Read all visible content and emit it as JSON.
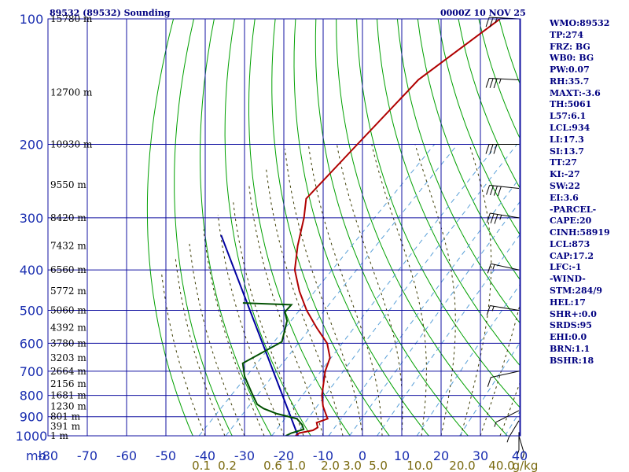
{
  "title_left": "89532 (89532) Sounding",
  "title_right": "0000Z 10 NOV 25",
  "chart_data": {
    "type": "skew-t",
    "pressure_unit_label": "mb",
    "pressure_ticks": [
      100,
      200,
      300,
      400,
      500,
      600,
      700,
      800,
      900,
      1000
    ],
    "temperature_ticks": [
      -80,
      -70,
      -60,
      -50,
      -40,
      -30,
      -20,
      -10,
      0,
      10,
      20,
      30,
      40
    ],
    "height_labels": [
      {
        "p": 100,
        "label": "15780 m"
      },
      {
        "p": 150,
        "label": "12700 m"
      },
      {
        "p": 200,
        "label": "10930 m"
      },
      {
        "p": 250,
        "label": "9550 m"
      },
      {
        "p": 300,
        "label": "8420 m"
      },
      {
        "p": 350,
        "label": "7432 m"
      },
      {
        "p": 400,
        "label": "6560 m"
      },
      {
        "p": 450,
        "label": "5772 m"
      },
      {
        "p": 500,
        "label": "5060 m"
      },
      {
        "p": 550,
        "label": "4392 m"
      },
      {
        "p": 600,
        "label": "3780 m"
      },
      {
        "p": 650,
        "label": "3203 m"
      },
      {
        "p": 700,
        "label": "2664 m"
      },
      {
        "p": 750,
        "label": "2156 m"
      },
      {
        "p": 800,
        "label": "1681 m"
      },
      {
        "p": 850,
        "label": "1230 m"
      },
      {
        "p": 900,
        "label": "801 m"
      },
      {
        "p": 950,
        "label": "391 m"
      },
      {
        "p": 1000,
        "label": "1 m"
      }
    ],
    "mixing_ratio_labels": [
      "0.1",
      "0.2",
      "0.6",
      "1.0",
      "2.0",
      "3.0",
      "5.0",
      "10.0",
      "20.0",
      "40.0",
      "g/kg"
    ],
    "temperature_profile": [
      {
        "p": 1000,
        "t": -17.0
      },
      {
        "p": 985,
        "t": -16.8
      },
      {
        "p": 970,
        "t": -14.0
      },
      {
        "p": 955,
        "t": -13.5
      },
      {
        "p": 930,
        "t": -15.0
      },
      {
        "p": 910,
        "t": -13.2
      },
      {
        "p": 890,
        "t": -14.6
      },
      {
        "p": 850,
        "t": -17.5
      },
      {
        "p": 800,
        "t": -20.6
      },
      {
        "p": 700,
        "t": -25.9
      },
      {
        "p": 650,
        "t": -28.1
      },
      {
        "p": 600,
        "t": -32.5
      },
      {
        "p": 550,
        "t": -39.2
      },
      {
        "p": 500,
        "t": -46.1
      },
      {
        "p": 450,
        "t": -52.8
      },
      {
        "p": 400,
        "t": -59.4
      },
      {
        "p": 350,
        "t": -64.8
      },
      {
        "p": 300,
        "t": -70.3
      },
      {
        "p": 270,
        "t": -74.6
      },
      {
        "p": 200,
        "t": -75.4
      },
      {
        "p": 150,
        "t": -76.1
      },
      {
        "p": 140,
        "t": -76.3
      },
      {
        "p": 100,
        "t": -71.0
      }
    ],
    "dewpoint_profile": [
      {
        "p": 1000,
        "t": -19.5
      },
      {
        "p": 985,
        "t": -18.8
      },
      {
        "p": 965,
        "t": -16.6
      },
      {
        "p": 940,
        "t": -18.2
      },
      {
        "p": 910,
        "t": -21.0
      },
      {
        "p": 885,
        "t": -27.4
      },
      {
        "p": 860,
        "t": -32.1
      },
      {
        "p": 840,
        "t": -34.8
      },
      {
        "p": 790,
        "t": -39.0
      },
      {
        "p": 720,
        "t": -45.1
      },
      {
        "p": 670,
        "t": -48.9
      },
      {
        "p": 595,
        "t": -44.4
      },
      {
        "p": 530,
        "t": -48.4
      },
      {
        "p": 505,
        "t": -51.2
      },
      {
        "p": 485,
        "t": -51.4
      },
      {
        "p": 480,
        "t": -64.2
      }
    ],
    "parcel_path": [
      {
        "p": 1000,
        "t": -16.4
      },
      {
        "p": 330,
        "t": -87.0
      }
    ],
    "wind_barbs_levels": [
      100,
      140,
      200,
      255,
      300,
      400,
      500,
      700,
      870,
      920,
      980,
      1000
    ],
    "wind_barbs": [
      {
        "p": 100,
        "dir": 275,
        "spd": 25
      },
      {
        "p": 140,
        "dir": 275,
        "spd": 35
      },
      {
        "p": 200,
        "dir": 270,
        "spd": 30
      },
      {
        "p": 255,
        "dir": 280,
        "spd": 40
      },
      {
        "p": 300,
        "dir": 285,
        "spd": 35
      },
      {
        "p": 400,
        "dir": 290,
        "spd": 15
      },
      {
        "p": 500,
        "dir": 285,
        "spd": 15
      },
      {
        "p": 700,
        "dir": 250,
        "spd": 10
      },
      {
        "p": 870,
        "dir": 230,
        "spd": 5
      },
      {
        "p": 920,
        "dir": 200,
        "spd": 5
      },
      {
        "p": 980,
        "dir": 180,
        "spd": 5
      },
      {
        "p": 1000,
        "dir": 170,
        "spd": 5
      }
    ]
  },
  "indices": [
    "WMO:89532",
    "TP:274",
    "FRZ: BG",
    "WB0: BG",
    "PW:0.07",
    "RH:35.7",
    "MAXT:-3.6",
    "TH:5061",
    "L57:6.1",
    "LCL:934",
    "LI:17.3",
    "SI:13.7",
    "TT:27",
    "KI:-27",
    "SW:22",
    "EI:3.6",
    "-PARCEL-",
    "CAPE:20",
    "CINH:58919",
    "LCL:873",
    "CAP:17.2",
    "LFC:-1",
    "-WIND-",
    "STM:284/9",
    "HEL:17",
    "SHR+:0.0",
    "SRDS:95",
    "EHI:0.0",
    "BRN:1.1",
    "BSHR:18"
  ],
  "colors": {
    "background": "#ffffff",
    "frame": "#1010a0",
    "isotherm": "#1010a0",
    "isobar": "#1010a0",
    "dry_adiabat": "#00a000",
    "moist_adiabat": "#3a3a00",
    "mixing_ratio": "#5aa0d8",
    "temperature": "#b00000",
    "dewpoint": "#005000",
    "parcel": "#0000a0",
    "barb": "#000000",
    "title": "#000080"
  }
}
